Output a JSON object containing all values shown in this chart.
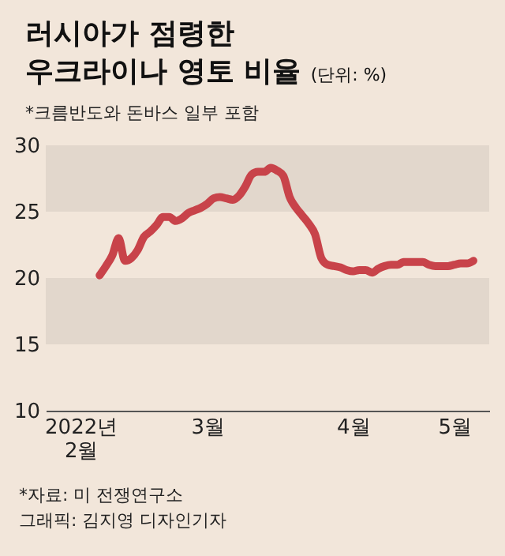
{
  "chart_data": {
    "type": "line",
    "title": "러시아가 점령한\n우크라이나 영토 비율",
    "subtitle": "*크름반도와 돈바스 일부 포함",
    "annotations": [
      "(단위: %)",
      "*자료: 미 전쟁연구소",
      "그래픽: 김지영 디자인기자"
    ],
    "categories": [
      null,
      null,
      null,
      null,
      null,
      "2022년\n2월",
      null,
      null,
      null,
      null,
      null,
      null,
      null,
      null,
      null,
      null,
      null,
      null,
      null,
      null,
      null,
      null,
      null,
      null,
      null,
      "3월",
      null,
      null,
      null,
      null,
      null,
      null,
      null,
      null,
      null,
      null,
      null,
      null,
      null,
      null,
      null,
      null,
      null,
      null,
      null,
      null,
      null,
      null,
      "4월",
      null,
      null,
      null,
      null,
      null,
      null,
      null,
      null,
      null,
      null,
      null,
      null,
      null,
      null,
      null,
      "5월",
      null,
      null,
      null,
      null,
      null
    ],
    "series": [
      {
        "color": "#c8434a",
        "values": [
          null,
          null,
          null,
          null,
          null,
          null,
          null,
          null,
          20.2,
          20.9,
          21.7,
          23.0,
          21.3,
          21.5,
          22.1,
          23.1,
          23.5,
          24.0,
          24.6,
          24.6,
          24.3,
          24.5,
          24.9,
          25.1,
          25.3,
          25.6,
          26.0,
          26.1,
          26.0,
          25.9,
          26.2,
          26.9,
          27.8,
          28.0,
          28.0,
          28.3,
          28.1,
          27.7,
          26.1,
          25.3,
          24.7,
          24.1,
          23.3,
          21.5,
          21.0,
          20.9,
          20.8,
          20.6,
          20.5,
          20.6,
          20.6,
          20.4,
          20.7,
          20.9,
          21.0,
          21.0,
          21.2,
          21.2,
          21.2,
          21.2,
          21.0,
          20.9,
          20.9,
          20.9,
          21.0,
          21.1,
          21.1,
          21.3,
          null,
          null
        ]
      }
    ],
    "ylim": [
      10,
      30
    ],
    "yticks": [
      10,
      15,
      20,
      25,
      30
    ],
    "bands": [
      {
        "axis": "y",
        "from": 25,
        "to": 30,
        "color": "#e2d7cc"
      },
      {
        "axis": "y",
        "from": 15,
        "to": 20,
        "color": "#e2d7cc"
      }
    ],
    "grid": false
  }
}
